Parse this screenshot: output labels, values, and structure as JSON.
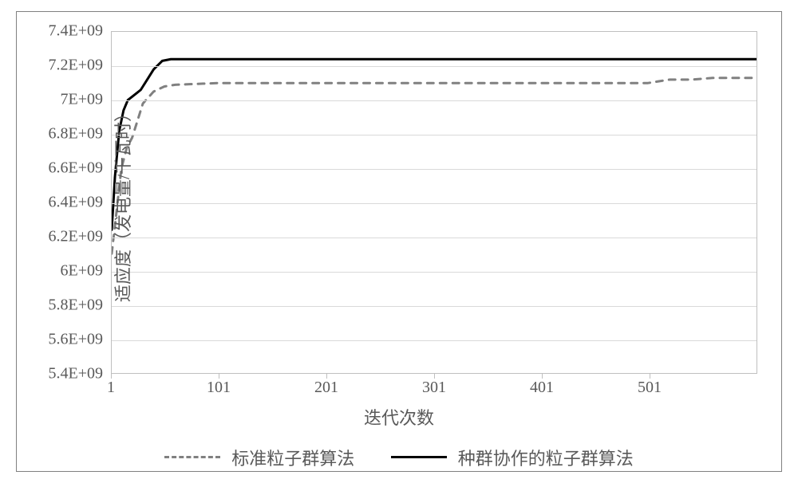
{
  "chart": {
    "type": "line",
    "background_color": "#ffffff",
    "border_color": "#808080",
    "grid_color": "#d9d9d9",
    "plot_border_color": "#bfbfbf",
    "tick_fontsize": 20,
    "label_fontsize": 22,
    "label_color": "#595959",
    "ylabel": "适应度（发电量/千瓦时）",
    "xlabel": "迭代次数",
    "xlim": [
      1,
      601
    ],
    "ylim": [
      5400000000.0,
      7400000000.0
    ],
    "xticks": [
      1,
      101,
      201,
      301,
      401,
      501
    ],
    "xtick_labels": [
      "1",
      "101",
      "201",
      "301",
      "401",
      "501"
    ],
    "yticks": [
      5400000000.0,
      5600000000.0,
      5800000000.0,
      6000000000.0,
      6200000000.0,
      6400000000.0,
      6600000000.0,
      6800000000.0,
      7000000000.0,
      7200000000.0,
      7400000000.0
    ],
    "ytick_labels": [
      "5.4E+09",
      "5.6E+09",
      "5.8E+09",
      "6E+09",
      "6.2E+09",
      "6.4E+09",
      "6.6E+09",
      "6.8E+09",
      "7E+09",
      "7.2E+09",
      "7.4E+09"
    ],
    "series": [
      {
        "name": "标准粒子群算法",
        "legend_label": "标准粒子群算法",
        "style": "dashed",
        "color": "#808080",
        "line_width": 3,
        "dash_pattern": "8,8",
        "x": [
          1,
          5,
          10,
          15,
          20,
          25,
          30,
          40,
          50,
          60,
          100,
          200,
          300,
          400,
          500,
          520,
          540,
          560,
          580,
          601
        ],
        "y": [
          6100000000.0,
          6320000000.0,
          6600000000.0,
          6720000000.0,
          6780000000.0,
          6880000000.0,
          6980000000.0,
          7050000000.0,
          7080000000.0,
          7090000000.0,
          7100000000.0,
          7100000000.0,
          7100000000.0,
          7100000000.0,
          7100000000.0,
          7120000000.0,
          7120000000.0,
          7130000000.0,
          7130000000.0,
          7130000000.0
        ]
      },
      {
        "name": "种群协作的粒子群算法",
        "legend_label": "种群协作的粒子群算法",
        "style": "solid",
        "color": "#000000",
        "line_width": 3,
        "x": [
          1,
          4,
          8,
          12,
          16,
          20,
          24,
          28,
          34,
          40,
          48,
          56,
          100,
          200,
          300,
          400,
          500,
          601
        ],
        "y": [
          6240000000.0,
          6550000000.0,
          6820000000.0,
          6940000000.0,
          7000000000.0,
          7020000000.0,
          7040000000.0,
          7060000000.0,
          7120000000.0,
          7180000000.0,
          7230000000.0,
          7240000000.0,
          7240000000.0,
          7240000000.0,
          7240000000.0,
          7240000000.0,
          7240000000.0,
          7240000000.0
        ]
      }
    ],
    "legend": {
      "items": [
        {
          "label": "标准粒子群算法",
          "swatch": "dashed",
          "color": "#808080"
        },
        {
          "label": "种群协作的粒子群算法",
          "swatch": "solid",
          "color": "#000000"
        }
      ]
    }
  }
}
